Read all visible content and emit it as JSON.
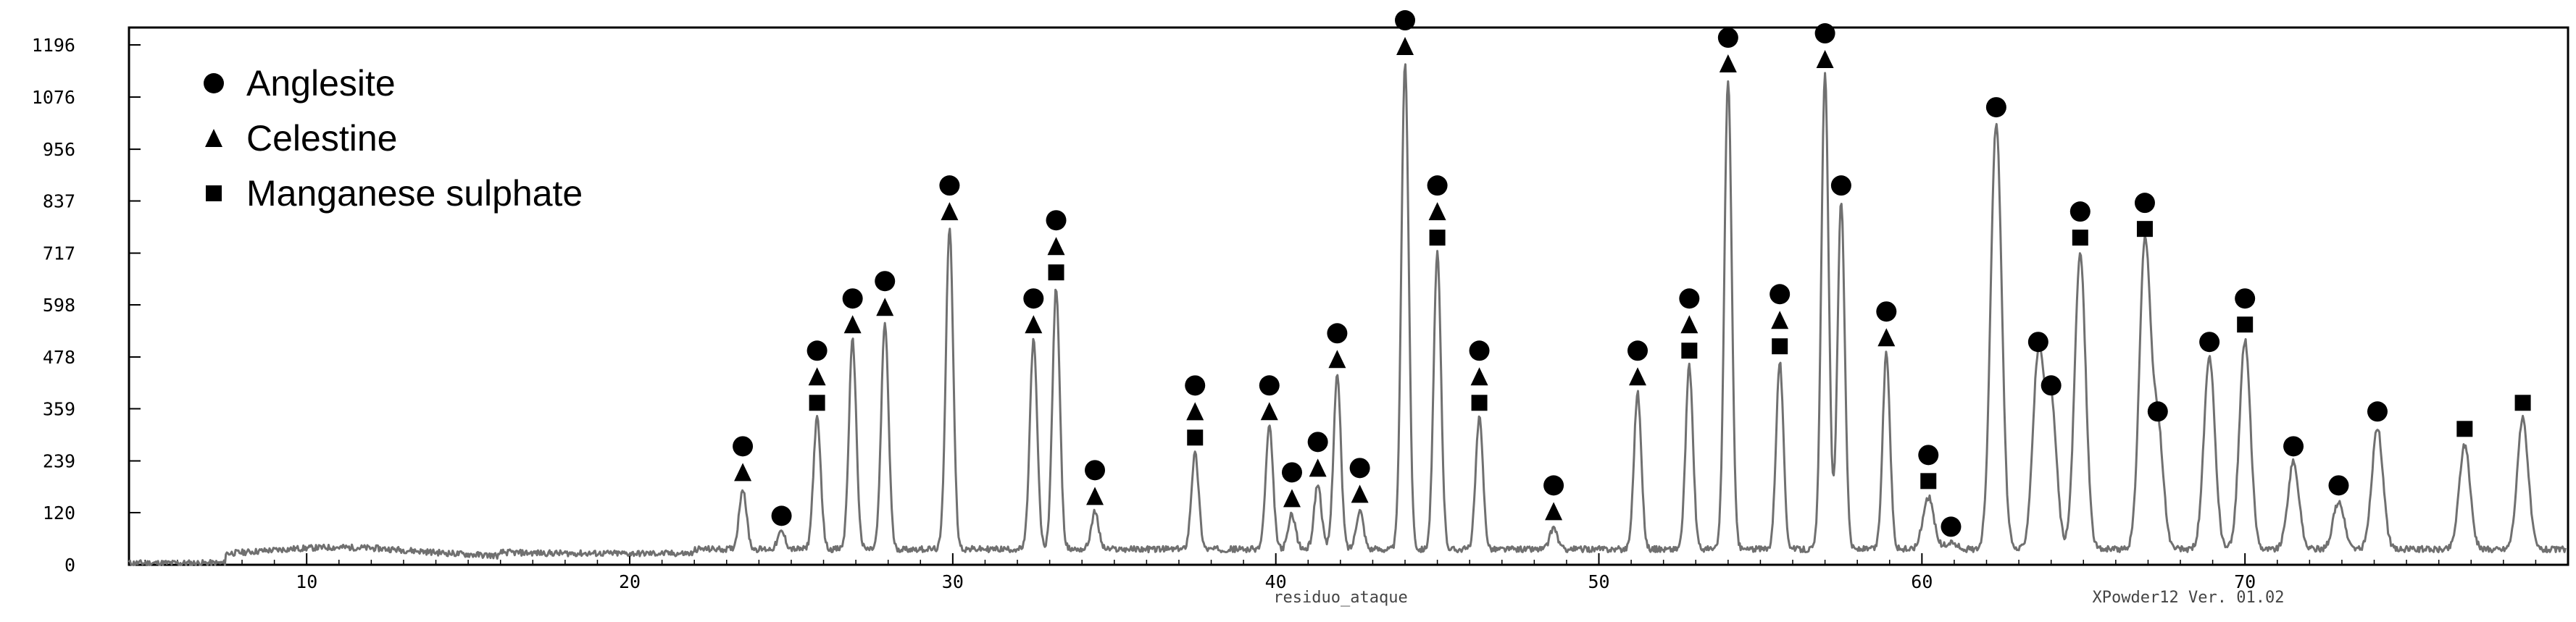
{
  "chart_data": {
    "type": "line",
    "title": "",
    "xlabel": "",
    "ylabel": "",
    "xlim": [
      4.5,
      80
    ],
    "ylim": [
      0,
      1236
    ],
    "x_ticks": [
      10,
      20,
      30,
      40,
      50,
      60,
      70
    ],
    "y_ticks": [
      0,
      120,
      239,
      359,
      478,
      598,
      717,
      837,
      956,
      1076,
      1196
    ],
    "grid": false,
    "legend_position": "top-left",
    "line_color": "#707070",
    "footer_center": "residuo_ataque",
    "footer_right": "XPowder12 Ver. 01.02",
    "legend": [
      {
        "label": "Anglesite",
        "marker": "circle"
      },
      {
        "label": "Celestine",
        "marker": "triangle"
      },
      {
        "label": "Manganese sulphate",
        "marker": "square"
      }
    ],
    "peaks": [
      {
        "x": 23.5,
        "y": 140,
        "markers": [
          "circle",
          "triangle"
        ]
      },
      {
        "x": 24.7,
        "y": 40,
        "markers": [
          "circle"
        ]
      },
      {
        "x": 25.8,
        "y": 300,
        "markers": [
          "circle",
          "triangle",
          "square"
        ]
      },
      {
        "x": 26.9,
        "y": 480,
        "markers": [
          "circle",
          "triangle"
        ]
      },
      {
        "x": 27.9,
        "y": 520,
        "markers": [
          "circle",
          "triangle"
        ]
      },
      {
        "x": 29.9,
        "y": 740,
        "markers": [
          "circle",
          "triangle"
        ]
      },
      {
        "x": 32.5,
        "y": 480,
        "markers": [
          "circle",
          "triangle"
        ]
      },
      {
        "x": 33.2,
        "y": 600,
        "markers": [
          "circle",
          "triangle",
          "square"
        ]
      },
      {
        "x": 34.4,
        "y": 85,
        "markers": [
          "circle",
          "triangle"
        ]
      },
      {
        "x": 37.5,
        "y": 220,
        "markers": [
          "circle",
          "triangle",
          "square"
        ]
      },
      {
        "x": 39.8,
        "y": 280,
        "markers": [
          "circle",
          "triangle"
        ]
      },
      {
        "x": 40.5,
        "y": 80,
        "markers": [
          "circle",
          "triangle"
        ]
      },
      {
        "x": 41.3,
        "y": 150,
        "markers": [
          "circle",
          "triangle"
        ]
      },
      {
        "x": 41.9,
        "y": 400,
        "markers": [
          "circle",
          "triangle"
        ]
      },
      {
        "x": 42.6,
        "y": 90,
        "markers": [
          "circle",
          "triangle"
        ]
      },
      {
        "x": 44.0,
        "y": 1120,
        "markers": [
          "circle",
          "triangle"
        ]
      },
      {
        "x": 45.0,
        "y": 680,
        "markers": [
          "circle",
          "triangle",
          "square"
        ]
      },
      {
        "x": 46.3,
        "y": 300,
        "markers": [
          "circle",
          "triangle",
          "square"
        ]
      },
      {
        "x": 48.6,
        "y": 50,
        "markers": [
          "circle",
          "triangle"
        ]
      },
      {
        "x": 51.2,
        "y": 360,
        "markers": [
          "circle",
          "triangle"
        ]
      },
      {
        "x": 52.8,
        "y": 420,
        "markers": [
          "circle",
          "triangle",
          "square"
        ]
      },
      {
        "x": 54.0,
        "y": 1080,
        "markers": [
          "circle",
          "triangle"
        ]
      },
      {
        "x": 55.6,
        "y": 430,
        "markers": [
          "circle",
          "triangle",
          "square"
        ]
      },
      {
        "x": 57.0,
        "y": 1090,
        "markers": [
          "circle",
          "triangle"
        ]
      },
      {
        "x": 57.5,
        "y": 800,
        "markers": [
          "circle"
        ]
      },
      {
        "x": 58.9,
        "y": 450,
        "markers": [
          "circle",
          "triangle"
        ]
      },
      {
        "x": 60.2,
        "y": 120,
        "markers": [
          "circle",
          "square"
        ]
      },
      {
        "x": 60.9,
        "y": 15,
        "markers": [
          "circle"
        ]
      },
      {
        "x": 62.3,
        "y": 980,
        "markers": [
          "circle"
        ]
      },
      {
        "x": 63.6,
        "y": 440,
        "markers": [
          "circle"
        ]
      },
      {
        "x": 64.0,
        "y": 340,
        "markers": [
          "circle"
        ]
      },
      {
        "x": 64.9,
        "y": 680,
        "markers": [
          "circle",
          "square"
        ]
      },
      {
        "x": 66.9,
        "y": 700,
        "markers": [
          "circle",
          "square"
        ]
      },
      {
        "x": 67.3,
        "y": 280,
        "markers": [
          "circle"
        ]
      },
      {
        "x": 68.9,
        "y": 440,
        "markers": [
          "circle"
        ]
      },
      {
        "x": 70.0,
        "y": 480,
        "markers": [
          "circle",
          "square"
        ]
      },
      {
        "x": 71.5,
        "y": 200,
        "markers": [
          "circle"
        ]
      },
      {
        "x": 72.9,
        "y": 110,
        "markers": [
          "circle"
        ]
      },
      {
        "x": 74.1,
        "y": 280,
        "markers": [
          "circle"
        ]
      },
      {
        "x": 76.8,
        "y": 240,
        "markers": [
          "square"
        ]
      },
      {
        "x": 78.6,
        "y": 300,
        "markers": [
          "square"
        ]
      }
    ]
  }
}
